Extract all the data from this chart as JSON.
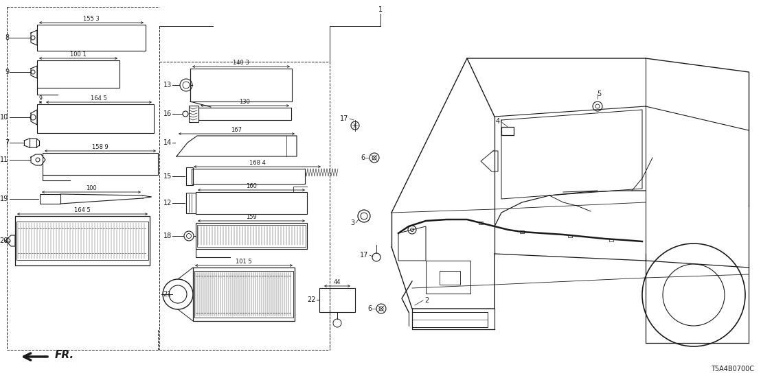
{
  "part_number": "T5A4B0700C",
  "bg_color": "#ffffff",
  "line_color": "#1a1a1a",
  "figsize": [
    11.08,
    5.54
  ],
  "dpi": 100
}
